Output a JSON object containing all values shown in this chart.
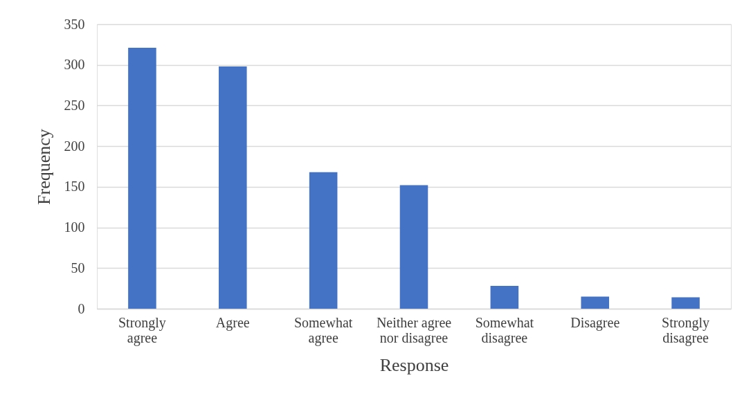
{
  "chart_data": {
    "type": "bar",
    "xlabel": "Response",
    "ylabel": "Frequency",
    "categories": [
      "Strongly agree",
      "Agree",
      "Somewhat agree",
      "Neither agree nor disagree",
      "Somewhat disagree",
      "Disagree",
      "Strongly disagree"
    ],
    "values": [
      321,
      298,
      168,
      152,
      28,
      15,
      14
    ],
    "color": "#4472c4",
    "ylim": [
      0,
      350
    ],
    "yticks": [
      0,
      50,
      100,
      150,
      200,
      250,
      300,
      350
    ],
    "grid": "y"
  }
}
